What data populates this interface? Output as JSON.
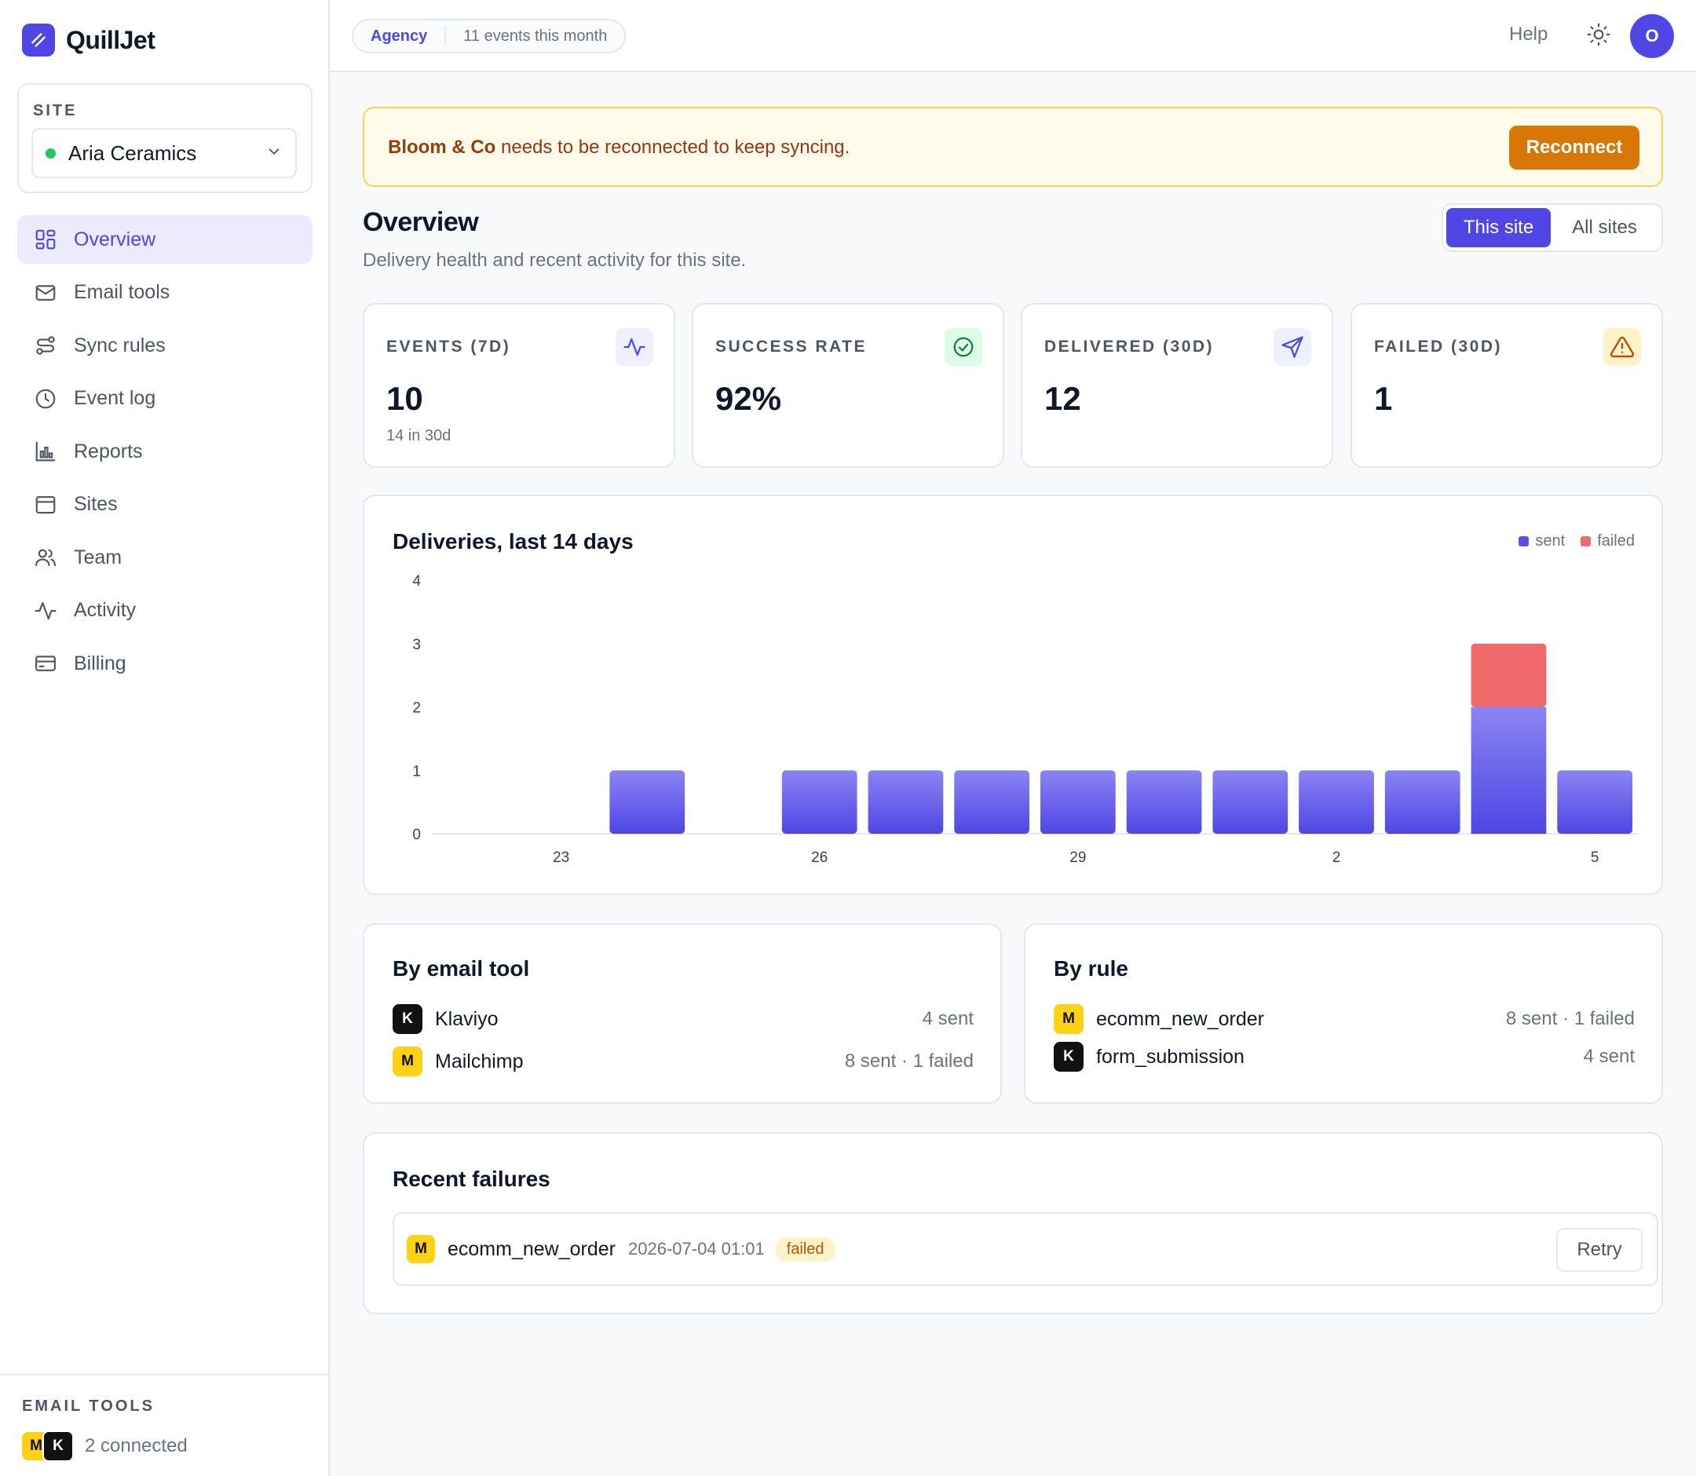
{
  "brand": {
    "name": "QuillJet"
  },
  "site_picker": {
    "label": "SITE",
    "selected": "Aria Ceramics"
  },
  "nav": [
    {
      "label": "Overview",
      "icon": "grid-icon",
      "active": true
    },
    {
      "label": "Email tools",
      "icon": "mail-icon"
    },
    {
      "label": "Sync rules",
      "icon": "route-icon"
    },
    {
      "label": "Event log",
      "icon": "clock-icon"
    },
    {
      "label": "Reports",
      "icon": "bar-chart-icon"
    },
    {
      "label": "Sites",
      "icon": "window-icon"
    },
    {
      "label": "Team",
      "icon": "users-icon"
    },
    {
      "label": "Activity",
      "icon": "activity-icon"
    },
    {
      "label": "Billing",
      "icon": "credit-card-icon"
    }
  ],
  "sidebar_footer": {
    "label": "EMAIL TOOLS",
    "badges": [
      "M",
      "K"
    ],
    "text": "2 connected"
  },
  "topbar": {
    "plan": "Agency",
    "events": "11 events this month",
    "help": "Help",
    "avatar": "O"
  },
  "alert": {
    "site": "Bloom & Co",
    "message": " needs to be reconnected to keep syncing.",
    "button": "Reconnect"
  },
  "page": {
    "title": "Overview",
    "subtitle": "Delivery health and recent activity for this site.",
    "scope_options": [
      "This site",
      "All sites"
    ],
    "scope_selected": "This site"
  },
  "stats": [
    {
      "label": "EVENTS (7D)",
      "value": "10",
      "sub": "14 in 30d",
      "icon": "activity-icon"
    },
    {
      "label": "SUCCESS RATE",
      "value": "92%",
      "sub": "",
      "icon": "check-circle-icon"
    },
    {
      "label": "DELIVERED (30D)",
      "value": "12",
      "sub": "",
      "icon": "send-icon"
    },
    {
      "label": "FAILED (30D)",
      "value": "1",
      "sub": "",
      "icon": "warning-icon"
    }
  ],
  "colors": {
    "accent": "#4f46e5",
    "sent": "#5b4fe9",
    "failed": "#f06a6a",
    "warning": "#d97706",
    "success": "#22c55e"
  },
  "chart_data": {
    "type": "bar",
    "title": "Deliveries, last 14 days",
    "stacked": true,
    "categories": [
      "22",
      "23",
      "24",
      "25",
      "26",
      "27",
      "28",
      "29",
      "30",
      "1",
      "2",
      "3",
      "4",
      "5"
    ],
    "tick_labels": [
      "23",
      "26",
      "29",
      "2",
      "5"
    ],
    "series": [
      {
        "name": "sent",
        "color": "#5b4fe9",
        "values": [
          0,
          0,
          1,
          0,
          1,
          1,
          1,
          1,
          1,
          1,
          1,
          1,
          2,
          1
        ]
      },
      {
        "name": "failed",
        "color": "#f06a6a",
        "values": [
          0,
          0,
          0,
          0,
          0,
          0,
          0,
          0,
          0,
          0,
          0,
          0,
          1,
          0
        ]
      }
    ],
    "ylim": [
      0,
      4
    ],
    "yticks": [
      0,
      1,
      2,
      3,
      4
    ],
    "legend": "top-right",
    "grid": false
  },
  "by_tool": {
    "title": "By email tool",
    "rows": [
      {
        "badge": "K",
        "name": "Klaviyo",
        "value": "4 sent"
      },
      {
        "badge": "M",
        "name": "Mailchimp",
        "value": "8 sent · 1 failed"
      }
    ]
  },
  "by_rule": {
    "title": "By rule",
    "rows": [
      {
        "badge": "M",
        "name": "ecomm_new_order",
        "value": "8 sent · 1 failed"
      },
      {
        "badge": "K",
        "name": "form_submission",
        "value": "4 sent"
      }
    ]
  },
  "recent_failures": {
    "title": "Recent failures",
    "items": [
      {
        "badge": "M",
        "rule": "ecomm_new_order",
        "time": "2026-07-04 01:01",
        "status": "failed",
        "action": "Retry"
      }
    ]
  }
}
